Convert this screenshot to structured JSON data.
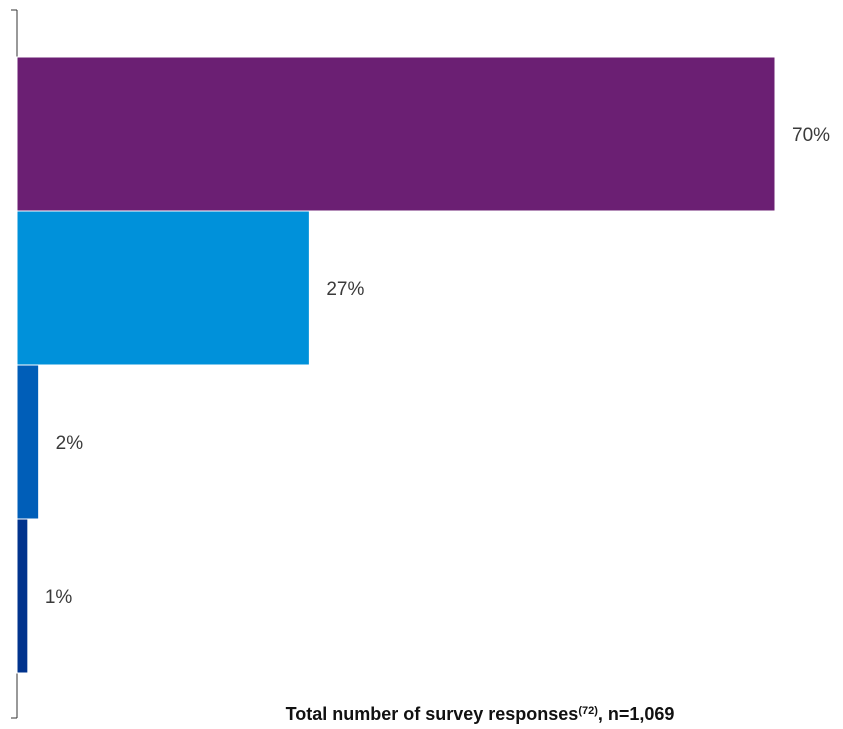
{
  "chart_data": {
    "type": "bar",
    "orientation": "horizontal",
    "categories": [
      "",
      "",
      "",
      ""
    ],
    "values": [
      70,
      27,
      2,
      1
    ],
    "value_labels": [
      "70%",
      "27%",
      "2%",
      "1%"
    ],
    "colors": [
      "#6b1f73",
      "#0091da",
      "#005eb8",
      "#00338d"
    ],
    "xlim": [
      0,
      70
    ],
    "xlabel": "Total number of survey responses",
    "xlabel_superscript": "(72)",
    "xlabel_suffix": ", n=1,069",
    "grid": false,
    "legend": "none"
  }
}
